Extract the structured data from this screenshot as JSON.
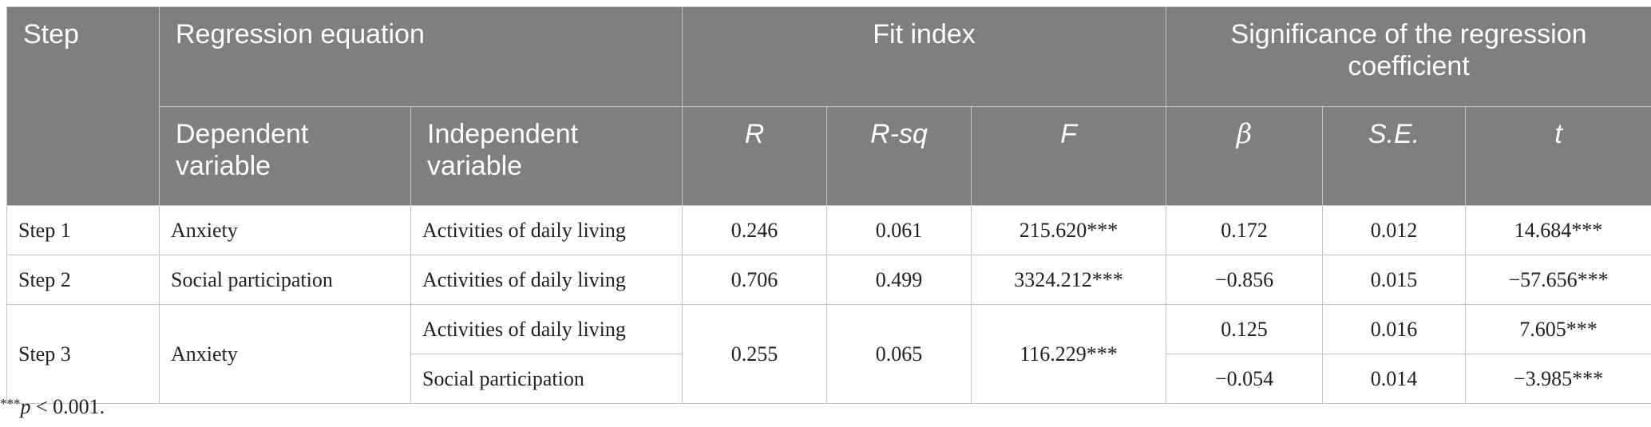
{
  "header": {
    "step": "Step",
    "regression_equation": "Regression equation",
    "fit_index": "Fit index",
    "significance": "Significance of the regression coefficient",
    "dependent_variable": "Dependent variable",
    "independent_variable": "Independent variable",
    "r": "R",
    "r_sq": "R-sq",
    "f": "F",
    "beta": "β",
    "se": "S.E.",
    "t": "t"
  },
  "rows": [
    {
      "step": "Step 1",
      "dependent": "Anxiety",
      "independent": "Activities of daily living",
      "r": "0.246",
      "r_sq": "0.061",
      "f": "215.620***",
      "beta": "0.172",
      "se": "0.012",
      "t": "14.684***"
    },
    {
      "step": "Step 2",
      "dependent": "Social participation",
      "independent": "Activities of daily living",
      "r": "0.706",
      "r_sq": "0.499",
      "f": "3324.212***",
      "beta": "−0.856",
      "se": "0.015",
      "t": "−57.656***"
    },
    {
      "step": "Step 3",
      "dependent": "Anxiety",
      "independent": "Activities of daily living",
      "r": "0.255",
      "r_sq": "0.065",
      "f": "116.229***",
      "beta": "0.125",
      "se": "0.016",
      "t": "7.605***"
    },
    {
      "independent": "Social participation",
      "beta": "−0.054",
      "se": "0.014",
      "t": "−3.985***"
    }
  ],
  "note": {
    "stars": "***",
    "p": "p",
    "rest": " < 0.001."
  }
}
